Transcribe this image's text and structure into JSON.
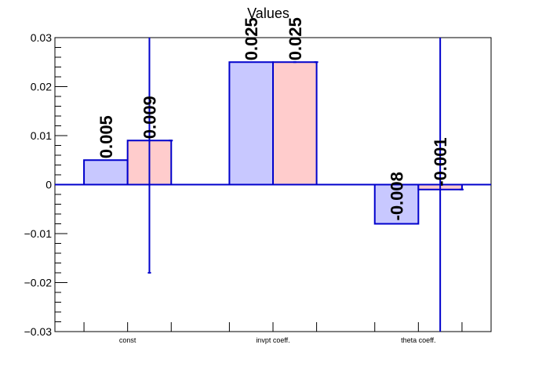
{
  "chart_data": {
    "type": "bar",
    "title": "Values",
    "categories": [
      "const",
      "invpt coeff.",
      "theta coeff."
    ],
    "series": [
      {
        "color": "#c8c8ff",
        "values": [
          0.005,
          0.025,
          -0.008
        ],
        "labels": [
          "0.005",
          "0.025",
          "-0.008"
        ]
      },
      {
        "color": "#ffcccc",
        "values": [
          0.009,
          0.025,
          -0.001
        ],
        "labels": [
          "0.009",
          "0.025",
          "-0.001"
        ],
        "errors": [
          0.027,
          0.0,
          0.07
        ]
      }
    ],
    "ylim": [
      -0.03,
      0.03
    ],
    "yticks": [
      "0.03",
      "0.02",
      "0.01",
      "0",
      "−0.01",
      "−0.02",
      "−0.03"
    ],
    "ytick_values": [
      0.03,
      0.02,
      0.01,
      0,
      -0.01,
      -0.02,
      -0.03
    ],
    "edge_color": "#0000cc",
    "grid": false,
    "legend": "none"
  }
}
